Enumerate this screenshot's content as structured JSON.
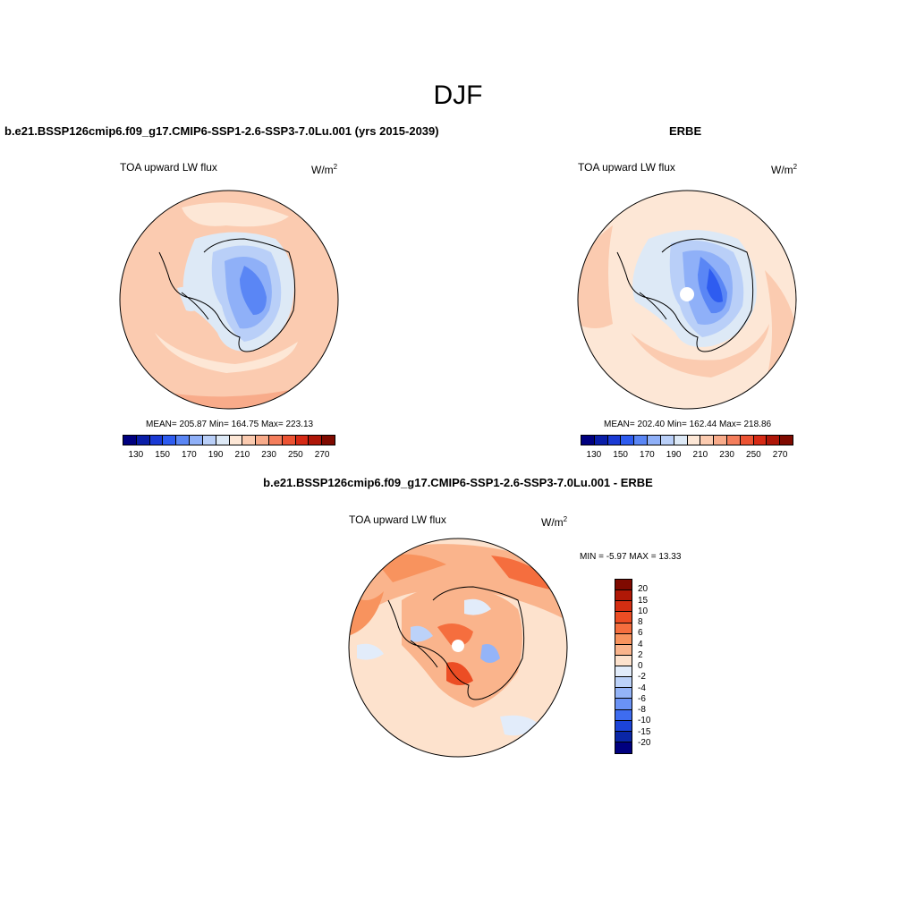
{
  "figure": {
    "title": "DJF"
  },
  "panel_model": {
    "title": "b.e21.BSSP126cmip6.f09_g17.CMIP6-SSP1-2.6-SSP3-7.0Lu.001 (yrs 2015-2039)",
    "subtitle": "TOA upward LW flux",
    "units_base": "W/m",
    "units_exp": "2",
    "stats": "MEAN= 205.87  Min= 164.75  Max= 223.13"
  },
  "panel_obs": {
    "title": "ERBE",
    "subtitle": "TOA upward LW flux",
    "units_base": "W/m",
    "units_exp": "2",
    "stats": "MEAN= 202.40  Min= 162.44  Max= 218.86"
  },
  "panel_diff": {
    "title": "b.e21.BSSP126cmip6.f09_g17.CMIP6-SSP1-2.6-SSP3-7.0Lu.001 - ERBE",
    "subtitle": "TOA upward LW flux",
    "units_base": "W/m",
    "units_exp": "2",
    "stats": "MIN =  -5.97 MAX =  13.33"
  },
  "colorbar_main": {
    "colors": [
      "#00007f",
      "#0a1ea8",
      "#1a3ad4",
      "#2e5cf0",
      "#5a86f5",
      "#8fb0f8",
      "#b9cff8",
      "#dde9f6",
      "#fde7d6",
      "#fbcbb0",
      "#f8ab8a",
      "#f47e5c",
      "#ec5333",
      "#d62a15",
      "#ae1608",
      "#7f0a00"
    ],
    "tick_labels": [
      "130",
      "150",
      "170",
      "190",
      "210",
      "230",
      "250",
      "270"
    ]
  },
  "colorbar_diff": {
    "colors": [
      "#7f0a00",
      "#b01806",
      "#d42e12",
      "#ec4d24",
      "#f56e3e",
      "#f8935e",
      "#fab48c",
      "#fde2cd",
      "#e2ecfa",
      "#bcd2f9",
      "#94b4f8",
      "#6a92f5",
      "#3e6cf0",
      "#1c44d8",
      "#0a26a6",
      "#00007f"
    ],
    "tick_labels": [
      "20",
      "15",
      "10",
      "8",
      "6",
      "4",
      "2",
      "0",
      "-2",
      "-4",
      "-6",
      "-8",
      "-10",
      "-15",
      "-20"
    ]
  }
}
